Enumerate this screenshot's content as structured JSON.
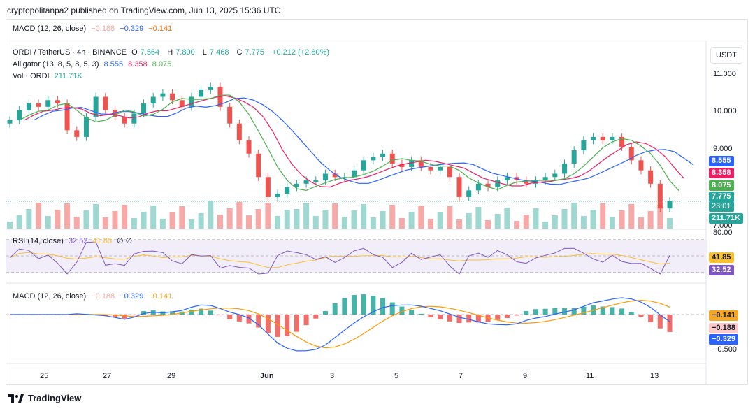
{
  "publisher": "cryptopolitanpa2 published on TradingView.com, Jun 13, 2025 15:36 UTC",
  "footer_brand": "TradingView",
  "currency_button": "USDT",
  "top_macd": {
    "label": "MACD (12, 26, close)",
    "hist": "−0.188",
    "macd": "−0.329",
    "signal": "−0.141"
  },
  "main_legend": {
    "symbol": "ORDI / TetherUS · 4h · BINANCE",
    "o_label": "O",
    "o": "7.564",
    "h_label": "H",
    "h": "7.800",
    "l_label": "L",
    "l": "7.468",
    "c_label": "C",
    "c": "7.775",
    "chg": "+0.212 (+2.80%)",
    "alligator_label": "Alligator (13, 8, 5, 8, 5, 3)",
    "jaw": "8.555",
    "teeth": "8.358",
    "lips": "8.075",
    "vol_label": "Vol · ORDI",
    "vol": "211.71K"
  },
  "price_axis": [
    "11.000",
    "10.000",
    "9.000",
    "7.000"
  ],
  "price_tags": {
    "jaw": "8.555",
    "teeth": "8.358",
    "lips": "8.075",
    "last": "7.775",
    "countdown": "23:01",
    "vol": "211.71K"
  },
  "rsi_legend": {
    "label": "RSI (14, close)",
    "rsi": "32.52",
    "ma": "41.85",
    "extra": "∅ ∅"
  },
  "rsi_axis": [
    "80.00"
  ],
  "rsi_tags": {
    "ma": "41.85",
    "rsi": "32.52"
  },
  "macd_legend": {
    "label": "MACD (12, 26, close)",
    "hist": "−0.188",
    "macd": "−0.329",
    "signal": "−0.141"
  },
  "macd_axis": [
    "−0.500"
  ],
  "macd_tags": {
    "signal": "−0.141",
    "hist": "−0.188",
    "macd": "−0.329"
  },
  "x_labels": [
    "25",
    "27",
    "29",
    "Jun",
    "3",
    "5",
    "7",
    "9",
    "11",
    "13"
  ],
  "colors": {
    "up": "#26a69a",
    "down": "#ef5350",
    "jaw": "#2962ff",
    "teeth": "#e91e63",
    "lips": "#4caf50",
    "rsi": "#7e57c2",
    "rsi_ma": "#fbc02d",
    "macd": "#2962ff",
    "signal": "#ff9800",
    "signal_tag": "#f5a623",
    "last_tag": "#26a69a"
  },
  "chart_data": {
    "type": "candlestick",
    "symbol": "ORDI / TetherUS",
    "interval": "4h",
    "ylim": [
      7.0,
      11.6
    ],
    "close_path": [
      10.2,
      10.5,
      10.7,
      10.6,
      10.8,
      10.7,
      9.9,
      9.7,
      10.3,
      10.9,
      10.5,
      10.3,
      10.1,
      10.4,
      10.7,
      10.9,
      11.0,
      10.8,
      10.6,
      10.9,
      11.1,
      11.2,
      10.6,
      10.1,
      9.6,
      9.2,
      8.5,
      7.9,
      8.0,
      8.2,
      8.3,
      8.4,
      8.4,
      8.6,
      8.5,
      8.5,
      8.7,
      9.0,
      9.1,
      9.2,
      8.9,
      8.8,
      9.0,
      8.8,
      8.7,
      8.8,
      8.5,
      7.9,
      8.1,
      8.3,
      8.2,
      8.4,
      8.5,
      8.4,
      8.3,
      8.4,
      8.5,
      8.6,
      8.9,
      9.3,
      9.6,
      9.7,
      9.6,
      9.7,
      9.4,
      9.0,
      8.7,
      8.3,
      7.56,
      7.775
    ],
    "alligator": {
      "jaw_last": 8.555,
      "teeth_last": 8.358,
      "lips_last": 8.075
    },
    "volume_last": "211.71K",
    "rsi": {
      "last": 32.52,
      "ma_last": 41.85
    },
    "macd": {
      "macd_last": -0.329,
      "signal_last": -0.141,
      "hist_last": -0.188
    }
  }
}
